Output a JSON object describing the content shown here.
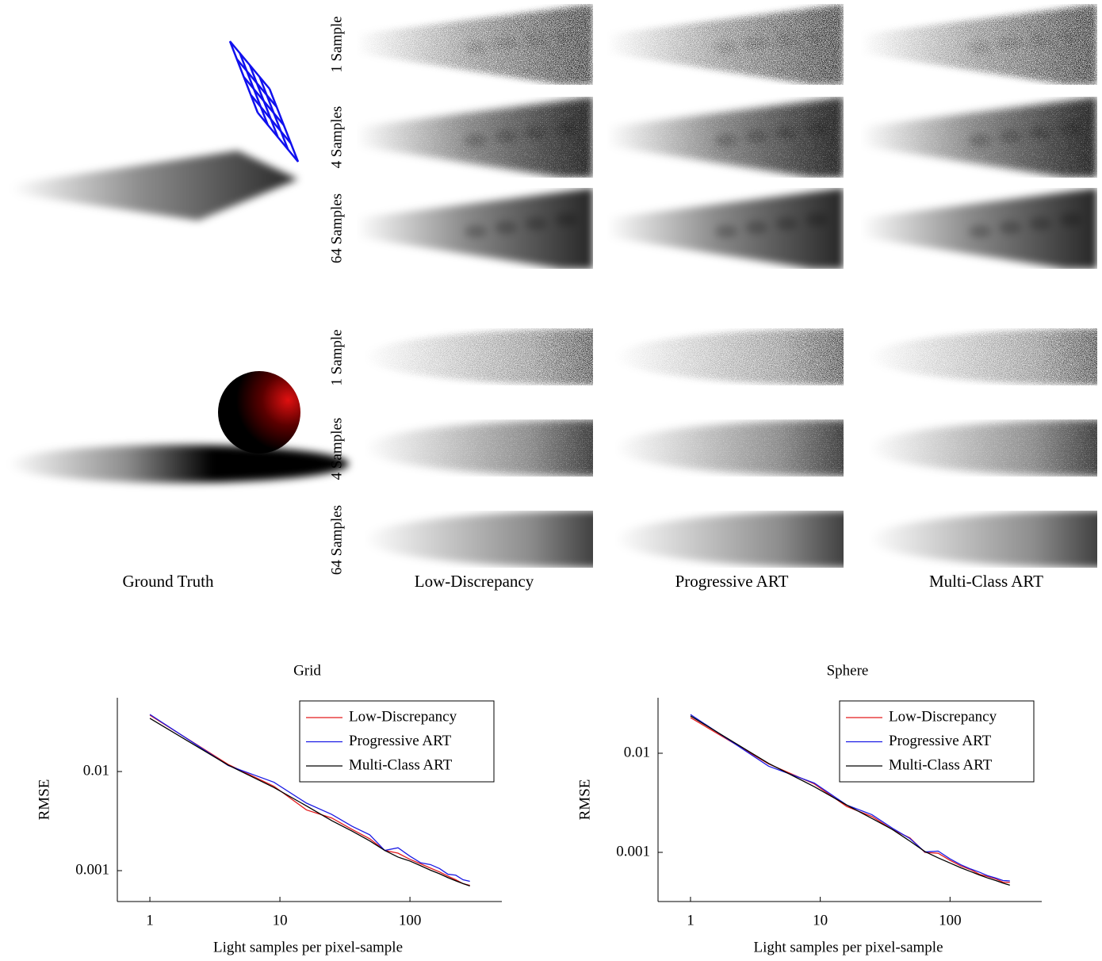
{
  "figure": {
    "column_labels": [
      "Ground Truth",
      "Low-Discrepancy",
      "Progressive ART",
      "Multi-Class ART"
    ],
    "panels": [
      {
        "row_labels": [
          "1 Sample",
          "4 Samples",
          "64 Samples"
        ]
      },
      {
        "row_labels": [
          "1 Sample",
          "4 Samples",
          "64 Samples"
        ]
      }
    ]
  },
  "chart_data": [
    {
      "type": "line",
      "title": "Grid",
      "x_label": "Light samples per pixel-sample",
      "y_label": "RMSE",
      "log_x": true,
      "log_y": true,
      "legend": "upper right",
      "x": [
        1,
        4,
        9,
        16,
        25,
        36,
        49,
        64,
        81,
        100,
        121,
        144,
        169,
        196,
        225,
        256,
        289
      ],
      "series": [
        {
          "name": "Low-Discrepancy",
          "color": "#e41a1c",
          "values": [
            0.037,
            0.0118,
            0.0071,
            0.0041,
            0.0034,
            0.0026,
            0.0021,
            0.0016,
            0.0015,
            0.0013,
            0.00117,
            0.00106,
            0.00097,
            0.00088,
            0.00081,
            0.00074,
            0.00071
          ]
        },
        {
          "name": "Progressive ART",
          "color": "#1a1ae4",
          "values": [
            0.0377,
            0.0115,
            0.0078,
            0.0048,
            0.0037,
            0.0028,
            0.0023,
            0.0016,
            0.0017,
            0.0014,
            0.0012,
            0.00115,
            0.00105,
            0.00092,
            0.0009,
            0.00081,
            0.00078
          ]
        },
        {
          "name": "Multi-Class ART",
          "color": "#000000",
          "values": [
            0.0344,
            0.0116,
            0.0069,
            0.0045,
            0.0032,
            0.0025,
            0.002,
            0.0016,
            0.00137,
            0.00125,
            0.00112,
            0.00101,
            0.00093,
            0.00085,
            0.00079,
            0.00074,
            0.0007
          ]
        }
      ],
      "xlim": [
        0.562,
        509
      ],
      "xticks": [
        1,
        10,
        100
      ],
      "ylim": [
        0.000488,
        0.0555
      ],
      "yticks": [
        0.001,
        0.01
      ]
    },
    {
      "type": "line",
      "title": "Sphere",
      "x_label": "Light samples per pixel-sample",
      "y_label": "RMSE",
      "log_x": true,
      "log_y": true,
      "legend": "upper right",
      "x": [
        1,
        4,
        9,
        16,
        25,
        36,
        49,
        64,
        81,
        100,
        121,
        144,
        169,
        196,
        225,
        256,
        289
      ],
      "series": [
        {
          "name": "Low-Discrepancy",
          "color": "#e41a1c",
          "values": [
            0.0229,
            0.0078,
            0.0049,
            0.0029,
            0.0023,
            0.0017,
            0.0014,
            0.001,
            0.00098,
            0.00083,
            0.00073,
            0.00067,
            0.0006,
            0.00057,
            0.00054,
            0.0005,
            0.000497
          ]
        },
        {
          "name": "Progressive ART",
          "color": "#1a1ae4",
          "values": [
            0.0246,
            0.0074,
            0.005,
            0.003,
            0.0024,
            0.00175,
            0.00138,
            0.00101,
            0.00103,
            0.00086,
            0.00075,
            0.00068,
            0.00063,
            0.00058,
            0.00055,
            0.00052,
            0.000515
          ]
        },
        {
          "name": "Multi-Class ART",
          "color": "#000000",
          "values": [
            0.0238,
            0.0079,
            0.0046,
            0.003,
            0.0022,
            0.0017,
            0.0013,
            0.00102,
            0.00088,
            0.00078,
            0.0007,
            0.00064,
            0.00059,
            0.00055,
            0.00052,
            0.00049,
            0.000466
          ]
        }
      ],
      "xlim": [
        0.562,
        509
      ],
      "xticks": [
        1,
        10,
        100
      ],
      "ylim": [
        0.000319,
        0.0363
      ],
      "yticks": [
        0.001,
        0.01
      ]
    }
  ]
}
